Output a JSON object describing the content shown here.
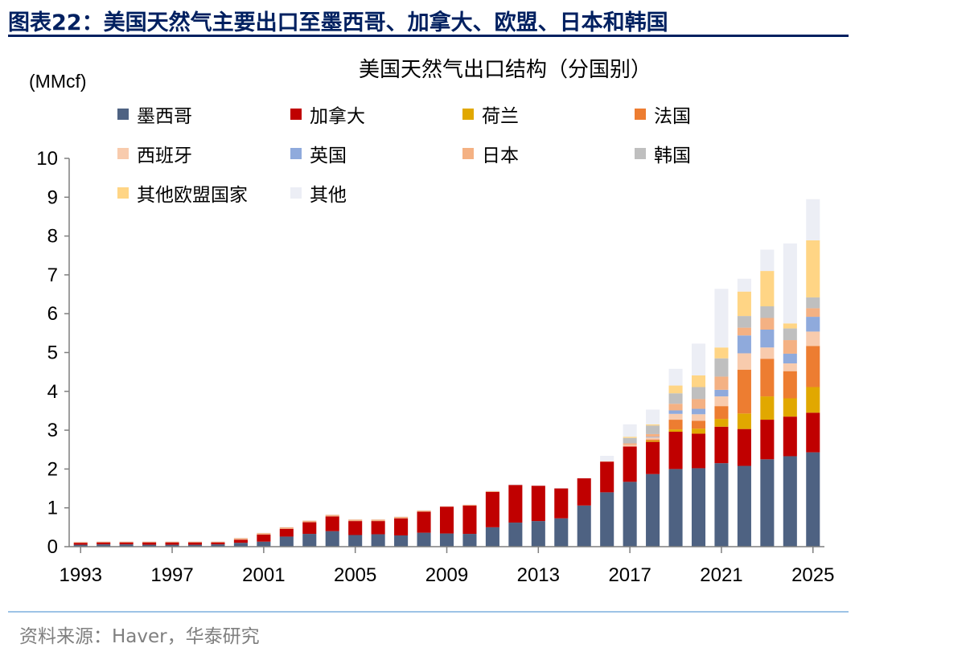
{
  "figure": {
    "title": "图表22：美国天然气主要出口至墨西哥、加拿大、欧盟、日本和韩国",
    "source": "资料来源：Haver，华泰研究"
  },
  "chart_data": {
    "type": "bar",
    "stacked": true,
    "title": "美国天然气出口结构（分国别）",
    "ylabel": "(MMcf)",
    "ylim": [
      0,
      10
    ],
    "yticks": [
      0,
      1,
      2,
      3,
      4,
      5,
      6,
      7,
      8,
      9,
      10
    ],
    "xtick_labels": [
      "1993",
      "1997",
      "2001",
      "2005",
      "2009",
      "2013",
      "2017",
      "2021",
      "2025"
    ],
    "legend_position": "top",
    "grid": false,
    "categories": [
      "1993",
      "1994",
      "1995",
      "1996",
      "1997",
      "1998",
      "1999",
      "2000",
      "2001",
      "2002",
      "2003",
      "2004",
      "2005",
      "2006",
      "2007",
      "2008",
      "2009",
      "2010",
      "2011",
      "2012",
      "2013",
      "2014",
      "2015",
      "2016",
      "2017",
      "2018",
      "2019",
      "2020",
      "2021",
      "2022",
      "2023",
      "2024",
      "2025"
    ],
    "series": [
      {
        "name": "墨西哥",
        "color": "#4e6282",
        "values": [
          0.05,
          0.06,
          0.06,
          0.05,
          0.05,
          0.05,
          0.06,
          0.1,
          0.13,
          0.26,
          0.33,
          0.4,
          0.3,
          0.32,
          0.29,
          0.36,
          0.34,
          0.33,
          0.5,
          0.62,
          0.66,
          0.73,
          1.06,
          1.4,
          1.67,
          1.87,
          2.0,
          2.02,
          2.15,
          2.08,
          2.25,
          2.33,
          2.43
        ]
      },
      {
        "name": "加拿大",
        "color": "#c00000",
        "values": [
          0.05,
          0.05,
          0.05,
          0.06,
          0.06,
          0.06,
          0.05,
          0.08,
          0.18,
          0.2,
          0.3,
          0.38,
          0.36,
          0.34,
          0.44,
          0.54,
          0.69,
          0.73,
          0.91,
          0.97,
          0.91,
          0.77,
          0.7,
          0.79,
          0.91,
          0.83,
          0.96,
          0.89,
          0.94,
          0.95,
          1.02,
          1.02,
          1.02
        ]
      },
      {
        "name": "荷兰",
        "color": "#e1a800",
        "values": [
          0,
          0,
          0,
          0,
          0,
          0,
          0,
          0,
          0,
          0,
          0,
          0,
          0,
          0,
          0,
          0,
          0,
          0,
          0,
          0,
          0,
          0,
          0,
          0,
          0,
          0.03,
          0.06,
          0.13,
          0.2,
          0.4,
          0.6,
          0.47,
          0.66
        ]
      },
      {
        "name": "法国",
        "color": "#ed7d31",
        "values": [
          0,
          0,
          0,
          0,
          0,
          0,
          0,
          0,
          0,
          0,
          0,
          0,
          0,
          0,
          0,
          0,
          0,
          0,
          0,
          0,
          0,
          0,
          0,
          0,
          0,
          0.03,
          0.25,
          0.2,
          0.33,
          1.13,
          0.97,
          0.7,
          1.06
        ]
      },
      {
        "name": "西班牙",
        "color": "#f8cbad",
        "values": [
          0,
          0,
          0,
          0,
          0,
          0,
          0,
          0,
          0,
          0,
          0,
          0,
          0,
          0,
          0,
          0,
          0,
          0,
          0,
          0,
          0,
          0,
          0,
          0,
          0.04,
          0.05,
          0.15,
          0.17,
          0.25,
          0.42,
          0.29,
          0.2,
          0.37
        ]
      },
      {
        "name": "英国",
        "color": "#8faadc",
        "values": [
          0,
          0,
          0,
          0,
          0,
          0,
          0,
          0,
          0,
          0,
          0,
          0,
          0,
          0,
          0,
          0,
          0,
          0,
          0,
          0,
          0,
          0,
          0,
          0,
          0,
          0.02,
          0.09,
          0.14,
          0.17,
          0.46,
          0.46,
          0.25,
          0.38
        ]
      },
      {
        "name": "日本",
        "color": "#f4b183",
        "values": [
          0.02,
          0.02,
          0.02,
          0.02,
          0.02,
          0.02,
          0.02,
          0.04,
          0.04,
          0.04,
          0.04,
          0.04,
          0.04,
          0.04,
          0.04,
          0.03,
          0.01,
          0.02,
          0.02,
          0,
          0,
          0,
          0,
          0.01,
          0.04,
          0.07,
          0.17,
          0.25,
          0.34,
          0.2,
          0.3,
          0.35,
          0.22
        ]
      },
      {
        "name": "韩国",
        "color": "#bfbfbf",
        "values": [
          0,
          0,
          0,
          0,
          0,
          0,
          0,
          0,
          0,
          0,
          0,
          0,
          0,
          0,
          0,
          0,
          0,
          0,
          0,
          0,
          0,
          0,
          0,
          0,
          0.14,
          0.22,
          0.27,
          0.31,
          0.47,
          0.3,
          0.3,
          0.3,
          0.28
        ]
      },
      {
        "name": "其他欧盟国家",
        "color": "#ffd585",
        "values": [
          0,
          0,
          0,
          0,
          0,
          0,
          0,
          0,
          0,
          0,
          0,
          0,
          0,
          0,
          0,
          0,
          0,
          0,
          0,
          0,
          0,
          0,
          0,
          0,
          0.03,
          0.03,
          0.2,
          0.3,
          0.28,
          0.63,
          0.91,
          0.13,
          1.47
        ]
      },
      {
        "name": "其他",
        "color": "#eceef5",
        "values": [
          0.01,
          0.01,
          0.01,
          0.01,
          0.01,
          0.01,
          0.01,
          0.01,
          0.01,
          0.01,
          0.01,
          0.01,
          0.01,
          0.01,
          0.01,
          0.01,
          0.01,
          0.01,
          0.02,
          0.02,
          0.01,
          0.01,
          0.01,
          0.14,
          0.32,
          0.38,
          0.43,
          0.82,
          1.51,
          0.33,
          0.55,
          2.06,
          1.06
        ]
      }
    ]
  }
}
